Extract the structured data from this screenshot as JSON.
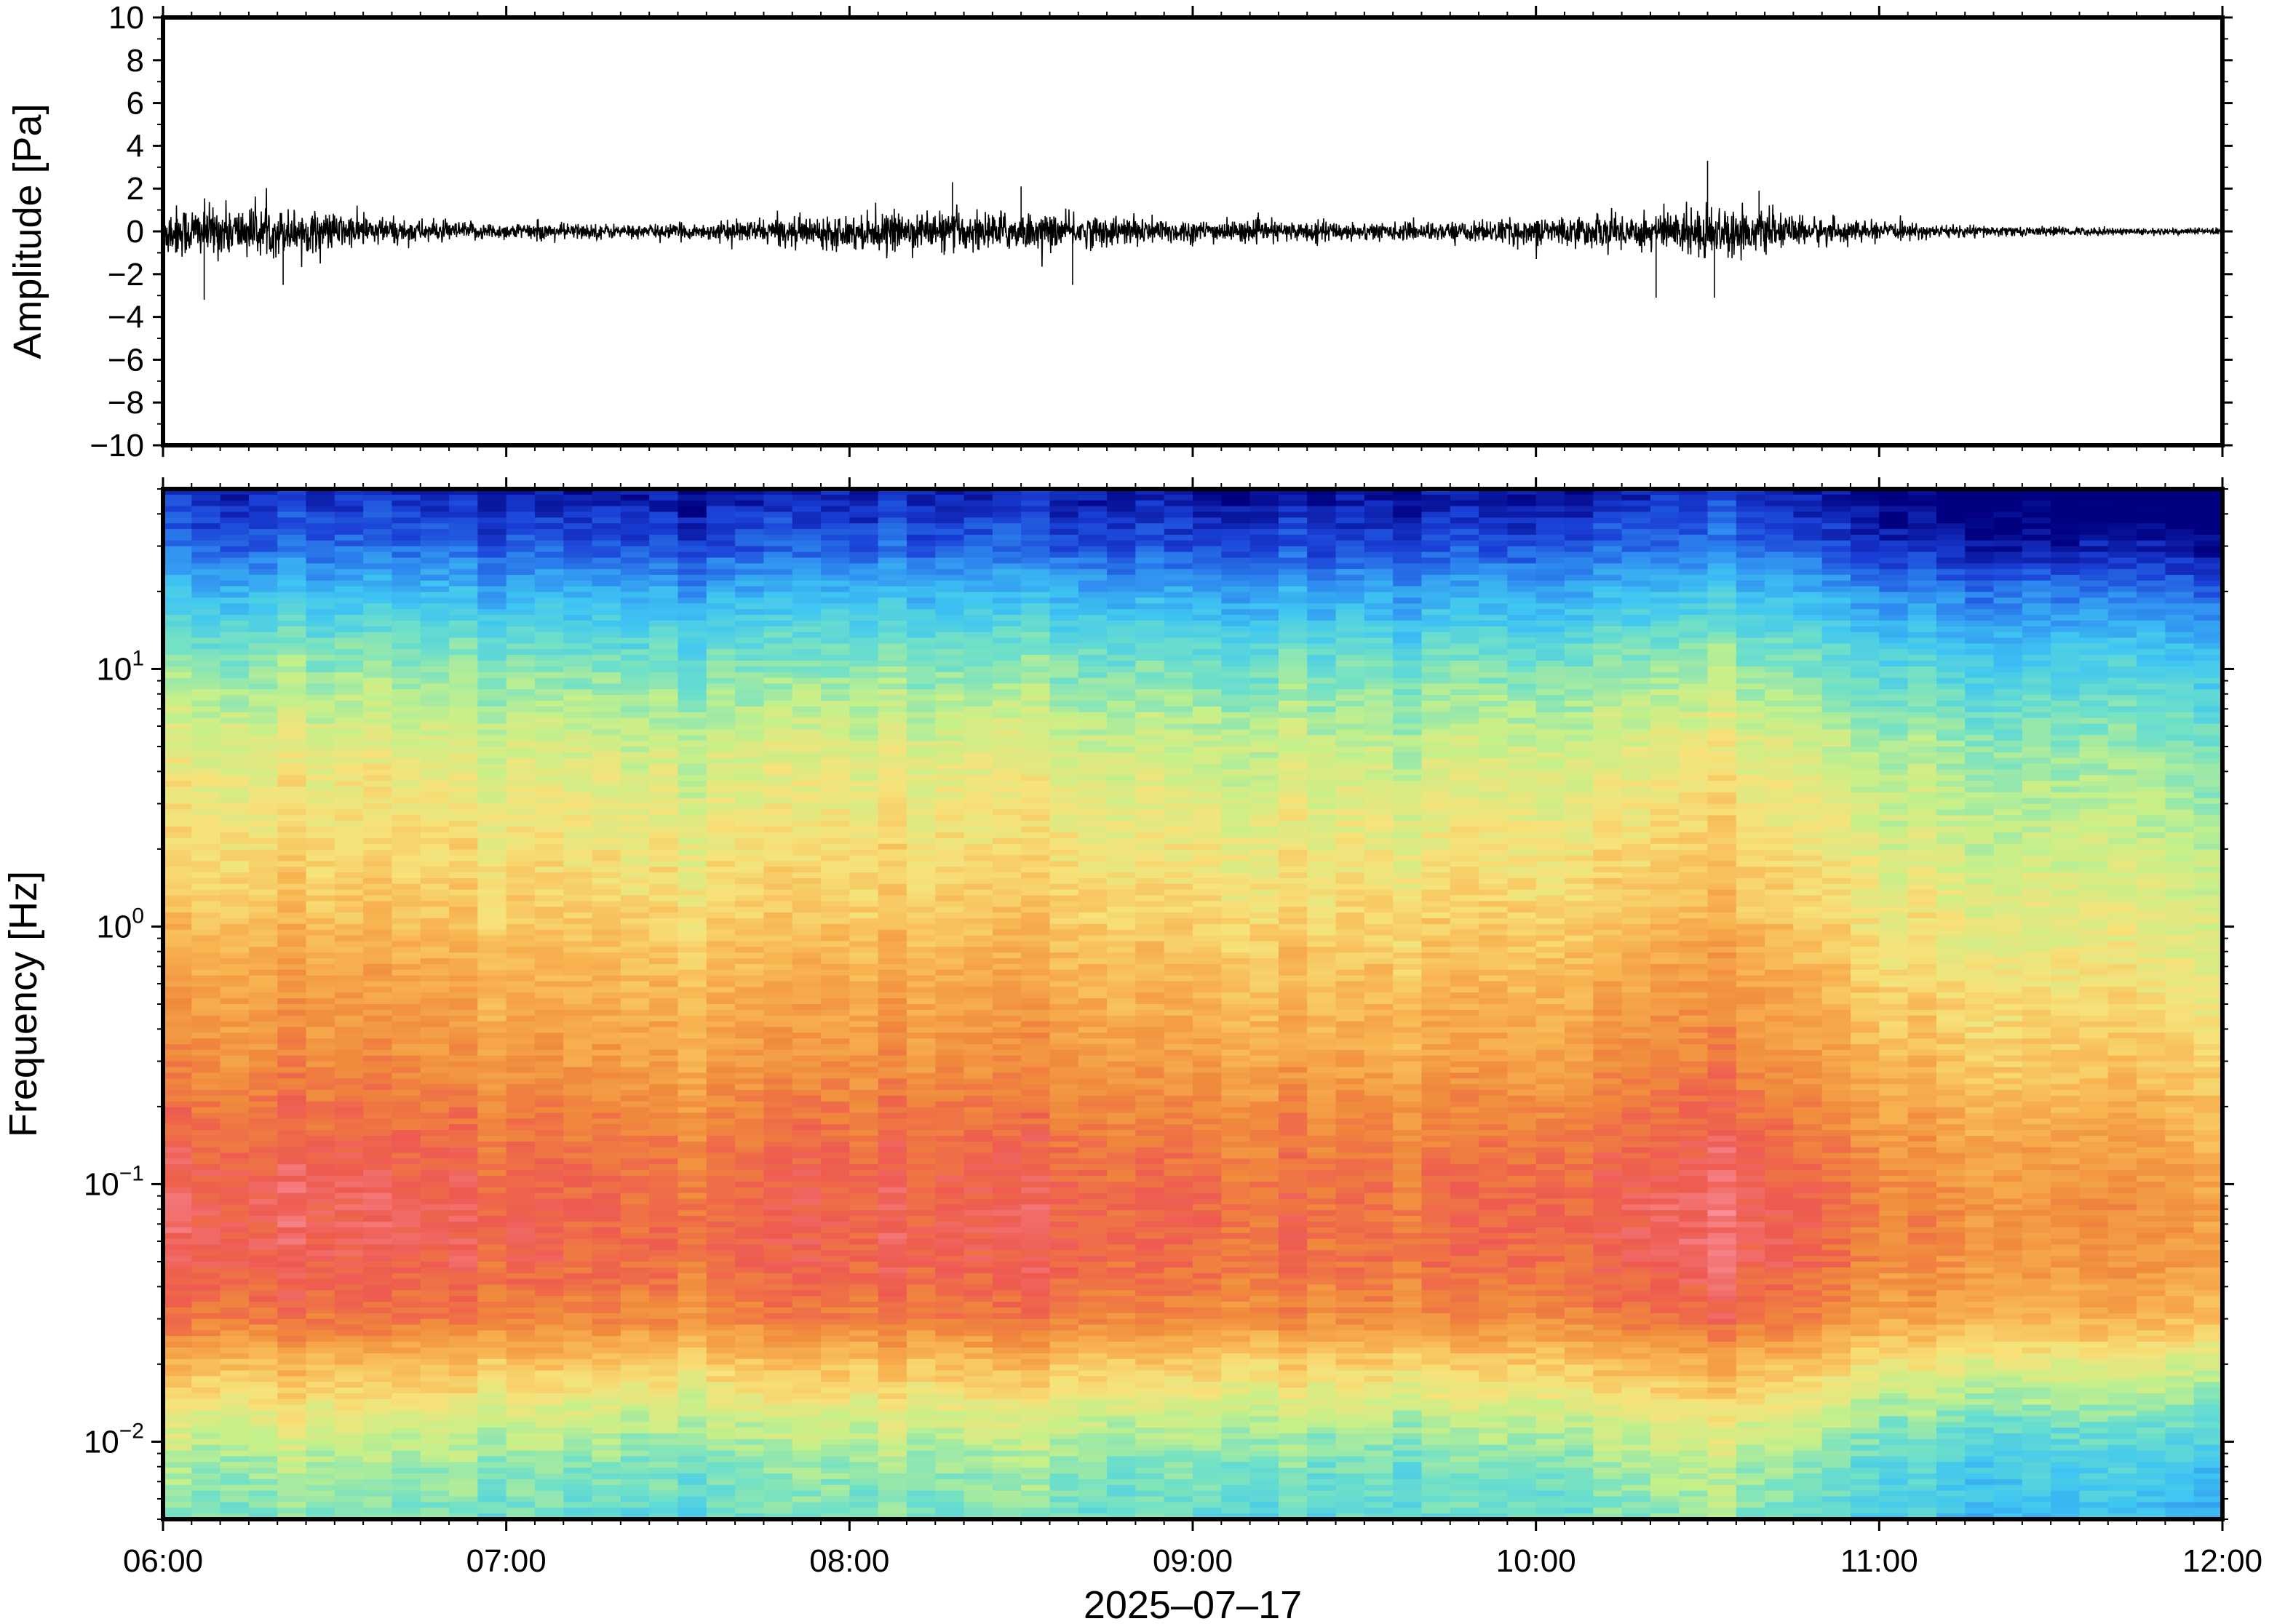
{
  "chart_data": [
    {
      "type": "line",
      "panel": "waveform",
      "ylabel": "Amplitude [Pa]",
      "ylim": [
        -10,
        10
      ],
      "y_ticks": [
        "10",
        "8",
        "6",
        "4",
        "2",
        "0",
        "−2",
        "−4",
        "−6",
        "−8",
        "−10"
      ],
      "y_tick_values": [
        10,
        8,
        6,
        4,
        2,
        0,
        -2,
        -4,
        -6,
        -8,
        -10
      ],
      "x_range_hours": [
        6,
        12
      ],
      "line_color": "#000000",
      "envelope": {
        "x_hours": [
          6.0,
          6.2,
          6.4,
          6.6,
          6.8,
          7.0,
          7.2,
          7.4,
          7.6,
          7.8,
          8.0,
          8.2,
          8.4,
          8.6,
          8.8,
          9.0,
          9.2,
          9.4,
          9.6,
          9.8,
          10.0,
          10.2,
          10.4,
          10.5,
          10.6,
          10.7,
          10.9,
          11.0,
          11.2,
          11.4,
          11.6,
          11.8,
          12.0
        ],
        "amp_pa": [
          1.6,
          1.5,
          1.3,
          0.9,
          0.6,
          0.5,
          0.5,
          0.4,
          0.5,
          0.8,
          1.0,
          1.1,
          1.2,
          1.0,
          0.9,
          0.7,
          0.6,
          0.6,
          0.5,
          0.6,
          0.8,
          1.0,
          1.3,
          1.6,
          1.3,
          1.0,
          0.7,
          0.5,
          0.4,
          0.3,
          0.25,
          0.2,
          0.2
        ]
      },
      "peaks": [
        {
          "x_hours": 6.12,
          "y_pa": -3.2
        },
        {
          "x_hours": 6.35,
          "y_pa": -2.5
        },
        {
          "x_hours": 8.3,
          "y_pa": 2.3
        },
        {
          "x_hours": 8.5,
          "y_pa": 2.1
        },
        {
          "x_hours": 8.65,
          "y_pa": -2.5
        },
        {
          "x_hours": 10.35,
          "y_pa": -3.1
        },
        {
          "x_hours": 10.5,
          "y_pa": 3.3
        },
        {
          "x_hours": 10.52,
          "y_pa": -3.1
        },
        {
          "x_hours": 10.65,
          "y_pa": 1.9
        }
      ]
    },
    {
      "type": "heatmap",
      "panel": "spectrogram",
      "ylabel": "Frequency [Hz]",
      "xlabel": "2025–07–17",
      "y_scale": "log",
      "ylim_hz": [
        0.005,
        50
      ],
      "y_ticks": [
        {
          "value": 10,
          "base": "10",
          "exp": "1"
        },
        {
          "value": 1,
          "base": "10",
          "exp": "0"
        },
        {
          "value": 0.1,
          "base": "10",
          "exp": "−1"
        },
        {
          "value": 0.01,
          "base": "10",
          "exp": "−2"
        }
      ],
      "x_ticks": [
        "06:00",
        "07:00",
        "08:00",
        "09:00",
        "10:00",
        "11:00",
        "12:00"
      ],
      "x_tick_hours": [
        6,
        7,
        8,
        9,
        10,
        11,
        12
      ],
      "x_range_hours": [
        6,
        12
      ],
      "colormap": [
        "#000080",
        "#1a3fd6",
        "#2f8cf0",
        "#3fc6f2",
        "#6fe0c8",
        "#c5f08a",
        "#f7e27a",
        "#f8b451",
        "#f08a3c",
        "#ee5a50",
        "#f88f98"
      ],
      "intensity_profile": {
        "freq_hz": [
          50,
          30,
          20,
          12,
          8,
          5,
          3,
          2,
          1.2,
          0.8,
          0.5,
          0.3,
          0.2,
          0.12,
          0.08,
          0.05,
          0.03,
          0.02,
          0.012,
          0.008,
          0.005
        ],
        "level_0_to_1": [
          0.03,
          0.12,
          0.25,
          0.38,
          0.45,
          0.52,
          0.56,
          0.59,
          0.63,
          0.67,
          0.71,
          0.75,
          0.8,
          0.85,
          0.87,
          0.86,
          0.8,
          0.65,
          0.5,
          0.42,
          0.38
        ]
      },
      "time_activity": {
        "x_hours": [
          6.0,
          6.5,
          7.0,
          7.5,
          8.0,
          8.5,
          9.0,
          9.5,
          10.0,
          10.3,
          10.5,
          10.7,
          11.0,
          11.5,
          12.0
        ],
        "relative_level": [
          0.06,
          0.05,
          0.0,
          -0.01,
          0.03,
          0.03,
          0.0,
          -0.03,
          -0.01,
          0.06,
          0.08,
          0.05,
          -0.06,
          -0.09,
          -0.11
        ]
      }
    }
  ]
}
